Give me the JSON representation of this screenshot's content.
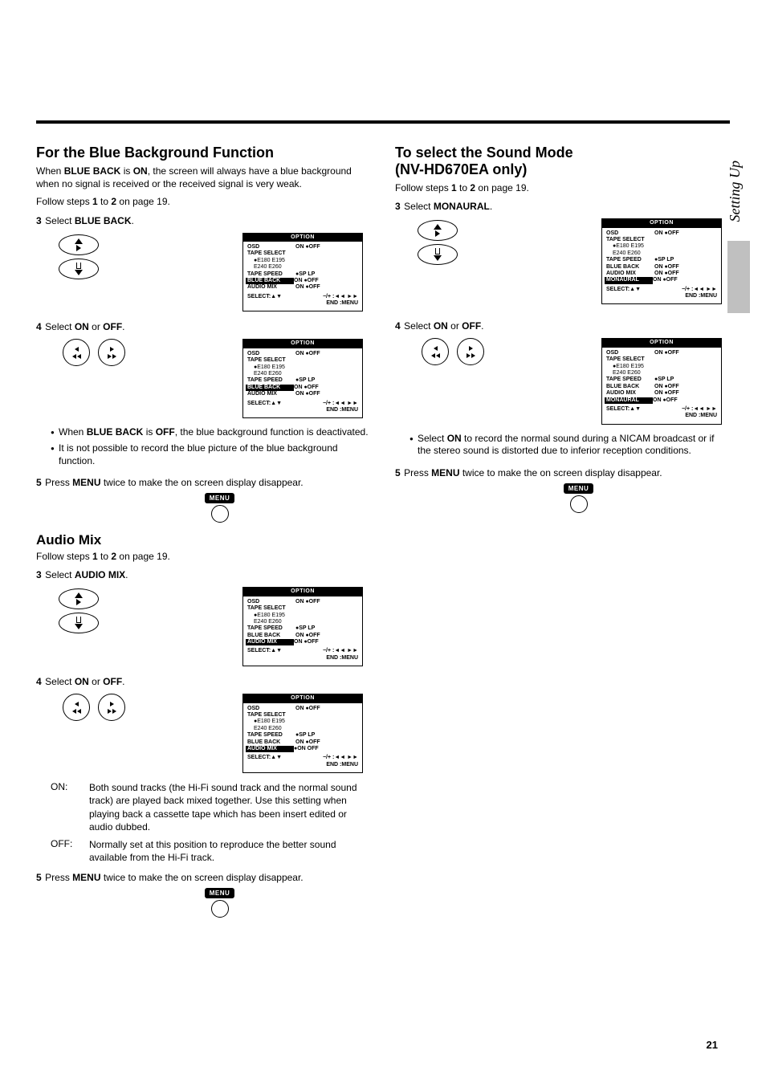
{
  "page": {
    "number": "21",
    "side_tab": "Setting Up"
  },
  "left": {
    "blueback": {
      "title": "For the Blue Background Function",
      "intro": "When BLUE BACK is ON, the screen will always have a blue background when no signal is received or the received signal is very weak.",
      "follow": "Follow steps 1 to 2 on page 19.",
      "step3_num": "3",
      "step3_txt": "Select BLUE BACK.",
      "step4_num": "4",
      "step4_txt": "Select ON or OFF.",
      "note1": "When BLUE BACK is OFF, the blue background function is deactivated.",
      "note2": "It is not possible to record the blue picture of the blue background function.",
      "step5_num": "5",
      "step5_txt": "Press MENU twice to make the on screen display disappear."
    },
    "audiomix": {
      "title": "Audio Mix",
      "follow": "Follow steps 1 to 2 on page 19.",
      "step3_num": "3",
      "step3_txt": "Select AUDIO MIX.",
      "step4_num": "4",
      "step4_txt": "Select ON or OFF.",
      "on_lbl": "ON:",
      "on_txt": "Both sound tracks (the Hi-Fi sound track and the normal sound track) are played back mixed together. Use this setting when playing back a cassette tape which has been insert edited or audio dubbed.",
      "off_lbl": "OFF:",
      "off_txt": "Normally set at this position to reproduce the better sound available from the Hi-Fi track.",
      "step5_num": "5",
      "step5_txt": "Press MENU twice to make the on screen display disappear."
    }
  },
  "right": {
    "sound": {
      "title1": "To select the Sound Mode",
      "title2": "(NV-HD670EA only)",
      "follow": "Follow steps 1 to 2 on page 19.",
      "step3_num": "3",
      "step3_txt": "Select MONAURAL.",
      "step4_num": "4",
      "step4_txt": "Select ON or OFF.",
      "note1": "Select ON to record the normal sound during a NICAM broadcast or if the stereo sound is distorted due to inferior reception conditions.",
      "step5_num": "5",
      "step5_txt": "Press MENU twice to make the on screen display disappear."
    }
  },
  "osd": {
    "title": "OPTION",
    "onoff": "ON ●OFF",
    "r_osd": "OSD",
    "r_tape": "TAPE SELECT",
    "r_tape_opts": "●E180   E195      E240    E260",
    "r_speed": "TAPE SPEED",
    "r_speed_opts": "●SP   LP",
    "r_blue": "BLUE BACK",
    "r_blue_opts": "ON ●OFF",
    "r_audio": "AUDIO MIX",
    "r_audio_on": "●ON   OFF",
    "r_audio_opts": "ON ●OFF",
    "r_mon": "MONAURAL",
    "r_mon_opts": "ON ●OFF",
    "sel_l": "SELECT:▲▼",
    "sel_r1": "−/+ :◄◄ ►►",
    "sel_r2": "END :MENU"
  },
  "menu_label": "MENU"
}
